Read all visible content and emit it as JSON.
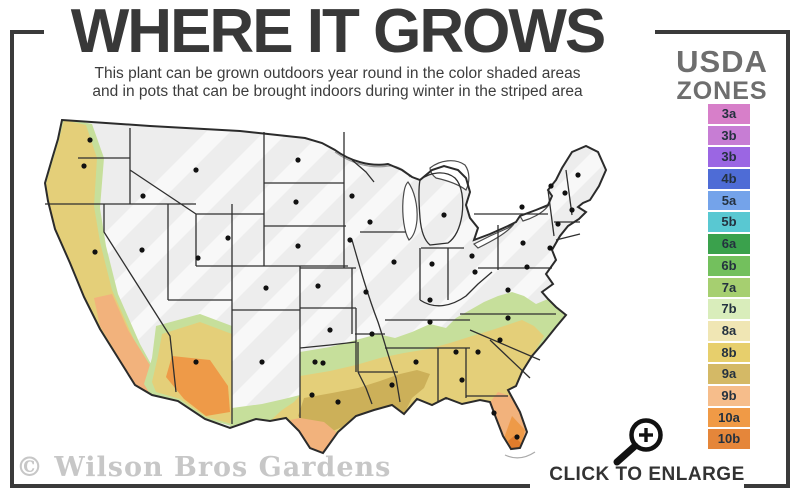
{
  "header": {
    "title": "WHERE IT GROWS",
    "subtitle_line1": "This plant can be grown outdoors year round in the color shaded areas",
    "subtitle_line2": "and in pots that can be brought indoors during winter in the striped area"
  },
  "legend": {
    "title_line1": "USDA",
    "title_line2": "ZONES",
    "zones": [
      {
        "label": "3a",
        "color": "#d77fc9"
      },
      {
        "label": "3b",
        "color": "#c77dd4"
      },
      {
        "label": "3b",
        "color": "#9b66e3"
      },
      {
        "label": "4b",
        "color": "#4e6cd6"
      },
      {
        "label": "5a",
        "color": "#74a3ea"
      },
      {
        "label": "5b",
        "color": "#59c8d2"
      },
      {
        "label": "6a",
        "color": "#3aa14c"
      },
      {
        "label": "6b",
        "color": "#73c05d"
      },
      {
        "label": "7a",
        "color": "#a6cf70"
      },
      {
        "label": "7b",
        "color": "#d9edbb"
      },
      {
        "label": "8a",
        "color": "#f0e6b4"
      },
      {
        "label": "8b",
        "color": "#e7cf6c"
      },
      {
        "label": "9a",
        "color": "#d4b966"
      },
      {
        "label": "9b",
        "color": "#f6bd8b"
      },
      {
        "label": "10a",
        "color": "#f09a46"
      },
      {
        "label": "10b",
        "color": "#e5863a"
      }
    ]
  },
  "map": {
    "watermark": "© Wilson Bros Gardens",
    "description": "US map: striped gray north, color shaded south and west coast"
  },
  "footer": {
    "enlarge_label": "CLICK TO ENLARGE",
    "enlarge_icon": "magnifier-plus-icon"
  },
  "colors": {
    "frame": "#3a3a3a",
    "map_base": "#ededed",
    "map_outline": "#2b2b2b",
    "band_green": "#c6df9b",
    "band_yellow": "#e4cf79",
    "band_pale_yellow": "#e9dc92",
    "band_mustard": "#ccb059",
    "band_peach": "#f2b27c",
    "band_orange": "#ee9a48",
    "band_deep_orange": "#e07c2c"
  }
}
